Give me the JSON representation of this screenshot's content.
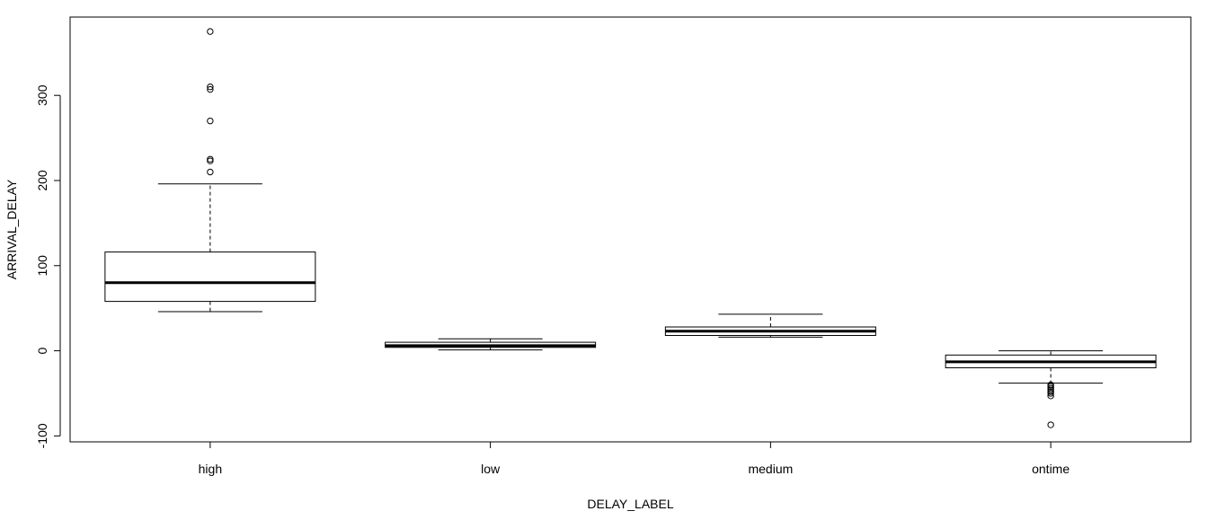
{
  "chart_data": {
    "type": "boxplot",
    "xlabel": "DELAY_LABEL",
    "ylabel": "ARRIVAL_DELAY",
    "ylim": [
      -107,
      392
    ],
    "yticks": [
      -100,
      0,
      100,
      200,
      300
    ],
    "ytick_labels": [
      "-100",
      "0",
      "100",
      "200",
      "300"
    ],
    "categories": [
      "high",
      "low",
      "medium",
      "ontime"
    ],
    "boxes": [
      {
        "label": "high",
        "whisker_low": 46,
        "q1": 58,
        "median": 80,
        "q3": 116,
        "whisker_high": 196,
        "outliers": [
          375,
          310,
          307,
          270,
          225,
          223,
          210
        ]
      },
      {
        "label": "low",
        "whisker_low": 1,
        "q1": 4,
        "median": 6,
        "q3": 10,
        "whisker_high": 14,
        "outliers": []
      },
      {
        "label": "medium",
        "whisker_low": 16,
        "q1": 18,
        "median": 23,
        "q3": 28,
        "whisker_high": 43,
        "outliers": []
      },
      {
        "label": "ontime",
        "whisker_low": -38,
        "q1": -20,
        "median": -13,
        "q3": -5,
        "whisker_high": 0,
        "outliers": [
          -40,
          -42,
          -44,
          -46,
          -48,
          -50,
          -53,
          -87
        ]
      }
    ],
    "grid": false,
    "legend": "none"
  }
}
